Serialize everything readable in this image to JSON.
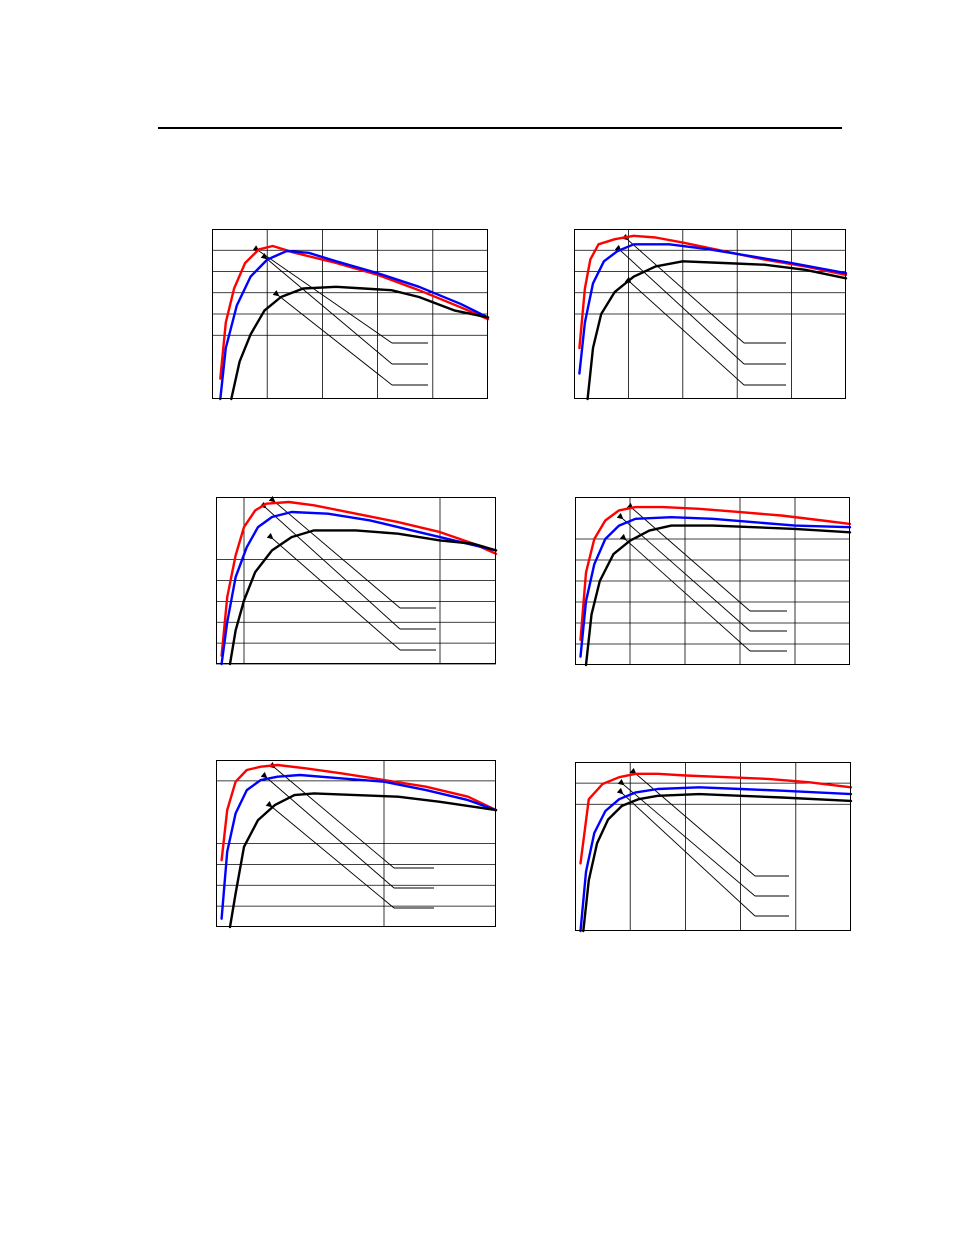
{
  "colors": {
    "red": "#ff0000",
    "blue": "#0000ff",
    "black": "#000000"
  },
  "chart_data": [
    {
      "type": "line",
      "x_range": [
        0,
        100
      ],
      "y_range": [
        0,
        100
      ],
      "vgrid": [
        20,
        40,
        60,
        80
      ],
      "hgrid": [
        87.5,
        75,
        62.5,
        50,
        37.5
      ],
      "legend_swatch": [
        false,
        false,
        false
      ],
      "series": [
        {
          "color_key": "red",
          "points": [
            [
              3,
              12
            ],
            [
              5,
              45
            ],
            [
              8,
              65
            ],
            [
              12,
              80
            ],
            [
              17,
              88
            ],
            [
              22,
              90
            ],
            [
              30,
              86
            ],
            [
              45,
              80
            ],
            [
              60,
              73
            ],
            [
              75,
              64
            ],
            [
              90,
              54
            ],
            [
              100,
              47
            ]
          ]
        },
        {
          "color_key": "blue",
          "points": [
            [
              3,
              0
            ],
            [
              5,
              30
            ],
            [
              9,
              55
            ],
            [
              14,
              72
            ],
            [
              20,
              82
            ],
            [
              27,
              87
            ],
            [
              35,
              86
            ],
            [
              45,
              81
            ],
            [
              60,
              74
            ],
            [
              75,
              66
            ],
            [
              90,
              56
            ],
            [
              100,
              48
            ]
          ]
        },
        {
          "color_key": "black",
          "points": [
            [
              7,
              0
            ],
            [
              10,
              22
            ],
            [
              14,
              38
            ],
            [
              19,
              52
            ],
            [
              25,
              60
            ],
            [
              33,
              65
            ],
            [
              45,
              66
            ],
            [
              55,
              65
            ],
            [
              65,
              64
            ],
            [
              75,
              60
            ],
            [
              88,
              52
            ],
            [
              100,
              48
            ]
          ]
        }
      ]
    },
    {
      "type": "line",
      "x_range": [
        0,
        100
      ],
      "y_range": [
        0,
        100
      ],
      "vgrid": [
        20,
        40,
        60,
        80
      ],
      "hgrid": [
        87.5,
        75,
        62.5,
        50
      ],
      "legend_swatch": [
        false,
        false,
        false
      ],
      "series": [
        {
          "color_key": "red",
          "points": [
            [
              2,
              30
            ],
            [
              4,
              65
            ],
            [
              6,
              82
            ],
            [
              9,
              91
            ],
            [
              15,
              94
            ],
            [
              22,
              96
            ],
            [
              30,
              95
            ],
            [
              40,
              92
            ],
            [
              55,
              87
            ],
            [
              70,
              82
            ],
            [
              85,
              78
            ],
            [
              100,
              73
            ]
          ]
        },
        {
          "color_key": "blue",
          "points": [
            [
              2,
              15
            ],
            [
              4,
              45
            ],
            [
              7,
              68
            ],
            [
              11,
              81
            ],
            [
              16,
              87
            ],
            [
              22,
              91
            ],
            [
              35,
              91
            ],
            [
              50,
              88
            ],
            [
              65,
              84
            ],
            [
              80,
              80
            ],
            [
              100,
              74
            ]
          ]
        },
        {
          "color_key": "black",
          "points": [
            [
              5,
              0
            ],
            [
              7,
              30
            ],
            [
              10,
              50
            ],
            [
              15,
              63
            ],
            [
              22,
              72
            ],
            [
              30,
              78
            ],
            [
              40,
              81
            ],
            [
              55,
              80
            ],
            [
              70,
              79
            ],
            [
              85,
              76
            ],
            [
              100,
              71
            ]
          ]
        }
      ]
    },
    {
      "type": "line",
      "x_range": [
        0,
        100
      ],
      "y_range": [
        0,
        100
      ],
      "vgrid": [
        10,
        80
      ],
      "hgrid": [
        62.5,
        50,
        37.5,
        25,
        12.5,
        0
      ],
      "legend_swatch": [
        true,
        false,
        false
      ],
      "series": [
        {
          "color_key": "red",
          "points": [
            [
              2,
              5
            ],
            [
              4,
              40
            ],
            [
              7,
              65
            ],
            [
              10,
              82
            ],
            [
              14,
              92
            ],
            [
              18,
              96
            ],
            [
              26,
              97
            ],
            [
              35,
              95
            ],
            [
              50,
              90
            ],
            [
              65,
              85
            ],
            [
              80,
              79
            ],
            [
              92,
              72
            ],
            [
              100,
              66
            ]
          ]
        },
        {
          "color_key": "blue",
          "points": [
            [
              2,
              0
            ],
            [
              4,
              25
            ],
            [
              7,
              52
            ],
            [
              11,
              70
            ],
            [
              15,
              82
            ],
            [
              20,
              88
            ],
            [
              27,
              91
            ],
            [
              40,
              90
            ],
            [
              55,
              86
            ],
            [
              70,
              80
            ],
            [
              85,
              74
            ],
            [
              100,
              68
            ]
          ]
        },
        {
          "color_key": "black",
          "points": [
            [
              5,
              0
            ],
            [
              7,
              20
            ],
            [
              10,
              38
            ],
            [
              14,
              55
            ],
            [
              20,
              68
            ],
            [
              27,
              76
            ],
            [
              35,
              80
            ],
            [
              50,
              80
            ],
            [
              65,
              78
            ],
            [
              80,
              74
            ],
            [
              92,
              72
            ],
            [
              100,
              68
            ]
          ]
        }
      ]
    },
    {
      "type": "line",
      "x_range": [
        0,
        100
      ],
      "y_range": [
        0,
        100
      ],
      "vgrid": [
        20,
        40,
        60,
        80
      ],
      "hgrid": [
        75,
        62.5,
        50,
        37.5,
        25,
        12.5
      ],
      "legend_swatch": [
        false,
        false,
        false
      ],
      "series": [
        {
          "color_key": "red",
          "points": [
            [
              2,
              15
            ],
            [
              4,
              55
            ],
            [
              7,
              75
            ],
            [
              11,
              86
            ],
            [
              16,
              92
            ],
            [
              22,
              94
            ],
            [
              32,
              94
            ],
            [
              45,
              93
            ],
            [
              60,
              91
            ],
            [
              75,
              89
            ],
            [
              90,
              86
            ],
            [
              100,
              84
            ]
          ]
        },
        {
          "color_key": "blue",
          "points": [
            [
              2,
              5
            ],
            [
              4,
              38
            ],
            [
              7,
              60
            ],
            [
              11,
              75
            ],
            [
              16,
              83
            ],
            [
              22,
              87
            ],
            [
              35,
              88
            ],
            [
              50,
              87
            ],
            [
              65,
              85
            ],
            [
              80,
              83
            ],
            [
              100,
              82
            ]
          ]
        },
        {
          "color_key": "black",
          "points": [
            [
              4,
              0
            ],
            [
              6,
              30
            ],
            [
              9,
              50
            ],
            [
              14,
              66
            ],
            [
              20,
              74
            ],
            [
              27,
              80
            ],
            [
              35,
              83
            ],
            [
              50,
              83
            ],
            [
              65,
              82
            ],
            [
              80,
              81
            ],
            [
              100,
              79
            ]
          ]
        }
      ]
    },
    {
      "type": "line",
      "x_range": [
        0,
        100
      ],
      "y_range": [
        0,
        100
      ],
      "vgrid": [
        60
      ],
      "hgrid": [
        87.5,
        50,
        37.5,
        25,
        12.5
      ],
      "legend_swatch": [
        true,
        false,
        false
      ],
      "series": [
        {
          "color_key": "red",
          "points": [
            [
              2,
              40
            ],
            [
              4,
              70
            ],
            [
              7,
              87
            ],
            [
              11,
              94
            ],
            [
              16,
              96
            ],
            [
              22,
              97
            ],
            [
              32,
              95
            ],
            [
              45,
              92
            ],
            [
              60,
              88
            ],
            [
              75,
              84
            ],
            [
              90,
              78
            ],
            [
              100,
              70
            ]
          ]
        },
        {
          "color_key": "blue",
          "points": [
            [
              2,
              5
            ],
            [
              4,
              45
            ],
            [
              7,
              68
            ],
            [
              11,
              82
            ],
            [
              16,
              88
            ],
            [
              22,
              90
            ],
            [
              30,
              91
            ],
            [
              45,
              89
            ],
            [
              60,
              87
            ],
            [
              75,
              82
            ],
            [
              90,
              76
            ],
            [
              100,
              70
            ]
          ]
        },
        {
          "color_key": "black",
          "points": [
            [
              5,
              0
            ],
            [
              7,
              20
            ],
            [
              10,
              48
            ],
            [
              15,
              64
            ],
            [
              21,
              73
            ],
            [
              28,
              79
            ],
            [
              35,
              80
            ],
            [
              50,
              79
            ],
            [
              65,
              78
            ],
            [
              80,
              75
            ],
            [
              100,
              70
            ]
          ]
        }
      ]
    },
    {
      "type": "line",
      "x_range": [
        0,
        100
      ],
      "y_range": [
        0,
        100
      ],
      "vgrid": [
        20,
        40,
        60,
        80
      ],
      "hgrid": [
        87.5,
        75
      ],
      "legend_swatch": [
        false,
        false,
        false
      ],
      "series": [
        {
          "color_key": "red",
          "points": [
            [
              2,
              40
            ],
            [
              5,
              78
            ],
            [
              10,
              87
            ],
            [
              16,
              91
            ],
            [
              22,
              93
            ],
            [
              30,
              93
            ],
            [
              40,
              92
            ],
            [
              55,
              91
            ],
            [
              70,
              90
            ],
            [
              85,
              88
            ],
            [
              100,
              85
            ]
          ]
        },
        {
          "color_key": "blue",
          "points": [
            [
              2,
              0
            ],
            [
              4,
              35
            ],
            [
              7,
              58
            ],
            [
              11,
              71
            ],
            [
              16,
              78
            ],
            [
              22,
              82
            ],
            [
              30,
              84
            ],
            [
              45,
              85
            ],
            [
              60,
              84
            ],
            [
              75,
              83
            ],
            [
              100,
              81
            ]
          ]
        },
        {
          "color_key": "black",
          "points": [
            [
              3,
              0
            ],
            [
              5,
              30
            ],
            [
              8,
              52
            ],
            [
              12,
              66
            ],
            [
              17,
              74
            ],
            [
              23,
              78
            ],
            [
              30,
              80
            ],
            [
              45,
              81
            ],
            [
              60,
              80
            ],
            [
              75,
              79
            ],
            [
              100,
              77
            ]
          ]
        }
      ]
    }
  ]
}
